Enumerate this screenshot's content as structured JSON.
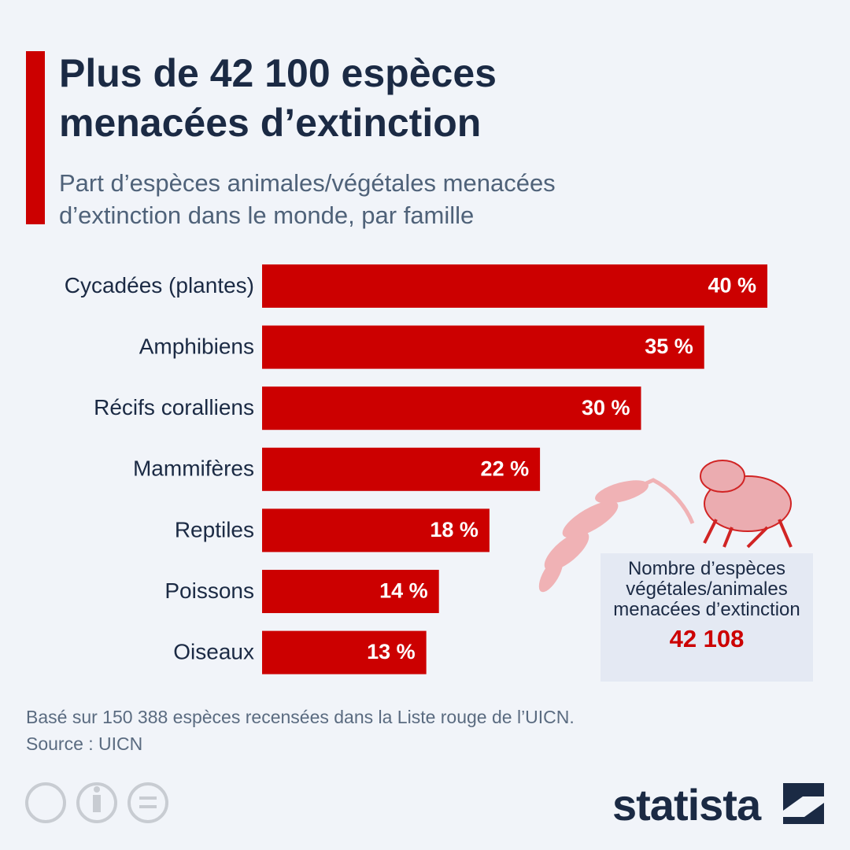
{
  "chart_data": {
    "type": "bar",
    "orientation": "horizontal",
    "title": "Plus de 42 100 espèces menacées d’extinction",
    "subtitle": "Part d’espèces animales/végétales menacées d’extinction dans le monde, par famille",
    "categories": [
      "Cycadées (plantes)",
      "Amphibiens",
      "Récifs coralliens",
      "Mammifères",
      "Reptiles",
      "Poissons",
      "Oiseaux"
    ],
    "values": [
      40,
      35,
      30,
      22,
      18,
      14,
      13
    ],
    "value_labels": [
      "40 %",
      "35 %",
      "30 %",
      "22 %",
      "18 %",
      "14 %",
      "13 %"
    ],
    "color": "#cc0000",
    "annotation": {
      "text": "Nombre d’espèces végétales/animales menacées d’extinction",
      "value": "42 108"
    },
    "footnote": "Basé sur 150 388 espèces recensées dans la Liste rouge de l’UICN.",
    "source": "Source : UICN",
    "brand": "statista"
  }
}
